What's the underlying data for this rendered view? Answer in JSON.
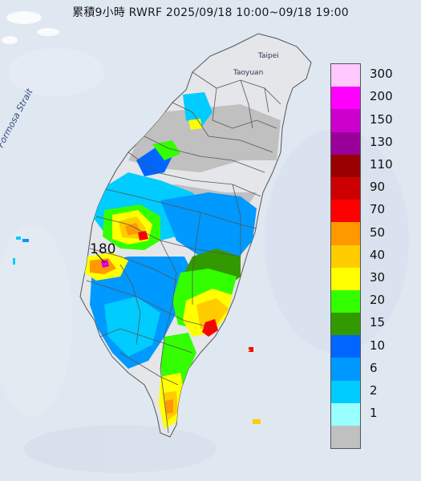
{
  "title": "累積9小時 RWRF 2025/09/18 10:00~09/18 19:00",
  "labels": {
    "strait": "Formosa Strait",
    "taipei": "Taipei",
    "taoyuan": "Taoyuan",
    "max_value": "180"
  },
  "legend": [
    {
      "label": "300",
      "color": "#ffc8ff"
    },
    {
      "label": "200",
      "color": "#ff00ff"
    },
    {
      "label": "150",
      "color": "#cc00cc"
    },
    {
      "label": "130",
      "color": "#990099"
    },
    {
      "label": "110",
      "color": "#990000"
    },
    {
      "label": "90",
      "color": "#cc0000"
    },
    {
      "label": "70",
      "color": "#ff0000"
    },
    {
      "label": "50",
      "color": "#ff9900"
    },
    {
      "label": "40",
      "color": "#ffcc00"
    },
    {
      "label": "30",
      "color": "#ffff00"
    },
    {
      "label": "20",
      "color": "#33ff00"
    },
    {
      "label": "15",
      "color": "#339900"
    },
    {
      "label": "10",
      "color": "#0066ff"
    },
    {
      "label": "6",
      "color": "#0099ff"
    },
    {
      "label": "2",
      "color": "#00ccff"
    },
    {
      "label": "1",
      "color": "#99ffff"
    },
    {
      "label": "",
      "color": "#c0c0c0"
    }
  ]
}
